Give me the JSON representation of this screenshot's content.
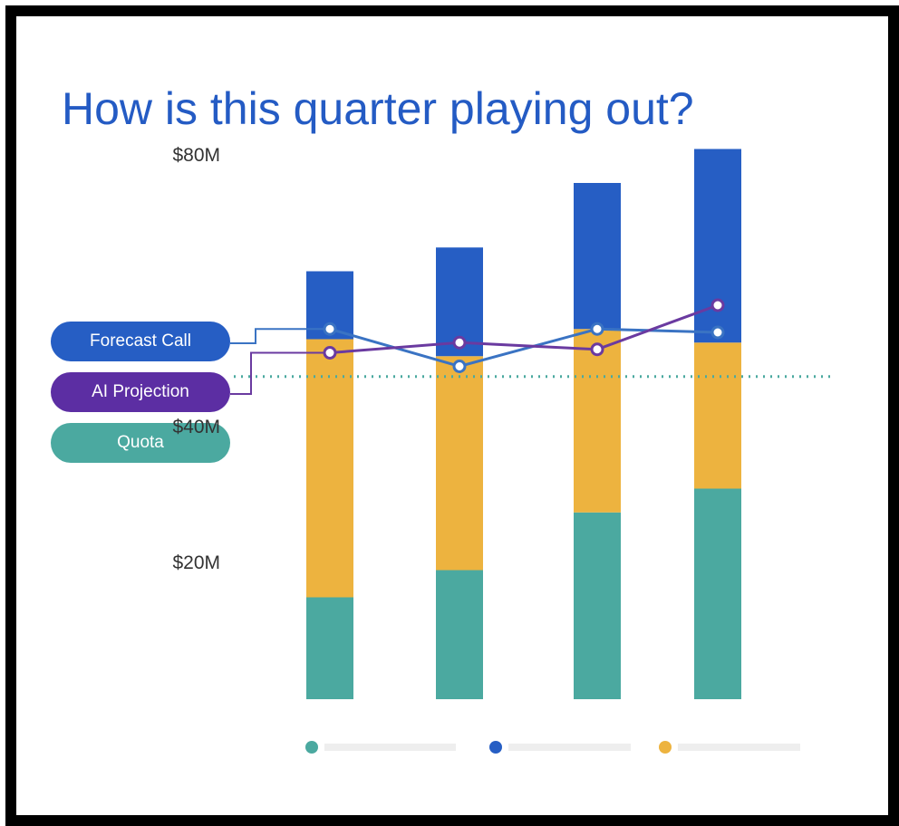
{
  "chart_data": {
    "type": "bar",
    "stacked": true,
    "title": "How is this quarter playing out?",
    "categories": [
      "",
      "",
      "",
      ""
    ],
    "series": [
      {
        "key": "teal",
        "values": [
          15,
          19,
          27.5,
          31
        ]
      },
      {
        "key": "yellow",
        "values": [
          38,
          31.5,
          27,
          21.5
        ]
      },
      {
        "key": "blue",
        "values": [
          10,
          16,
          21.5,
          28.5
        ]
      }
    ],
    "lines": [
      {
        "name": "Forecast Call",
        "values": [
          54.5,
          49,
          54.5,
          54
        ]
      },
      {
        "name": "AI Projection",
        "values": [
          51,
          52.5,
          51.5,
          58
        ]
      }
    ],
    "reference_line": {
      "name": "Quota",
      "value": 47.5
    },
    "yticks": [
      {
        "value": 80,
        "label": "$80M"
      },
      {
        "value": 40,
        "label": "$40M"
      },
      {
        "value": 20,
        "label": "$20M"
      }
    ],
    "ylim": [
      0,
      87
    ],
    "grid": false,
    "legend": "bottom",
    "legend_labels_visible": false,
    "colors": {
      "teal": "#4BA9A0",
      "yellow": "#EDB33F",
      "blue": "#265EC4",
      "forecast_line": "#3A73C3",
      "ai_line": "#6A3AA0",
      "quota_line": "#4BA9A0",
      "title": "#245BC4",
      "legend_bar": "#EEEEEE"
    }
  },
  "labels": {
    "forecast": "Forecast Call",
    "ai": "AI Projection",
    "quota": "Quota"
  },
  "pill_colors": {
    "forecast": "#265EC4",
    "ai": "#5C2EA3",
    "quota": "#4BA9A0"
  }
}
